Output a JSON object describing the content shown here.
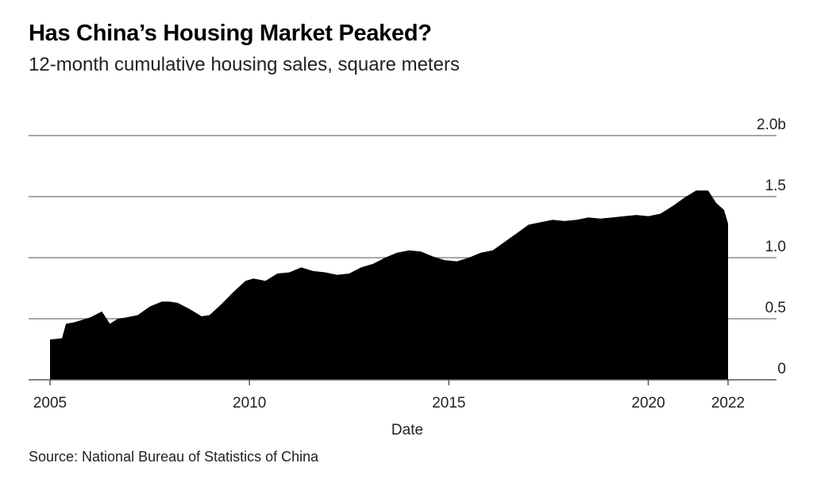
{
  "title": "Has China’s Housing Market Peaked?",
  "subtitle": "12-month cumulative housing sales, square meters",
  "source": "Source: National Bureau of Statistics of China",
  "chart_data": {
    "type": "area",
    "xlabel": "Date",
    "ylabel": "",
    "xlim": [
      2005,
      2022
    ],
    "ylim": [
      0,
      2.0
    ],
    "x_ticks": [
      2005,
      2010,
      2015,
      2020,
      2022
    ],
    "y_ticks": [
      0,
      0.5,
      1.0,
      1.5,
      2.0
    ],
    "y_tick_labels": [
      "0",
      "0.5",
      "1.0",
      "1.5",
      "2.0b"
    ],
    "grid": "horizontal",
    "color": "#000000",
    "series": [
      {
        "x": [
          2005.0,
          2005.3,
          2005.4,
          2005.6,
          2005.8,
          2006.0,
          2006.3,
          2006.5,
          2006.7,
          2006.9,
          2007.2,
          2007.5,
          2007.8,
          2008.0,
          2008.2,
          2008.5,
          2008.8,
          2009.0,
          2009.3,
          2009.6,
          2009.9,
          2010.1,
          2010.4,
          2010.7,
          2011.0,
          2011.3,
          2011.6,
          2011.9,
          2012.2,
          2012.5,
          2012.8,
          2013.1,
          2013.4,
          2013.7,
          2014.0,
          2014.3,
          2014.6,
          2014.9,
          2015.2,
          2015.5,
          2015.8,
          2016.1,
          2016.4,
          2016.7,
          2017.0,
          2017.3,
          2017.6,
          2017.9,
          2018.2,
          2018.5,
          2018.8,
          2019.1,
          2019.4,
          2019.7,
          2020.0,
          2020.3,
          2020.6,
          2020.9,
          2021.2,
          2021.5,
          2021.7,
          2021.9,
          2022.0
        ],
        "values": [
          0.33,
          0.34,
          0.46,
          0.47,
          0.49,
          0.51,
          0.56,
          0.46,
          0.5,
          0.51,
          0.53,
          0.6,
          0.64,
          0.64,
          0.63,
          0.58,
          0.52,
          0.53,
          0.62,
          0.72,
          0.81,
          0.83,
          0.81,
          0.87,
          0.88,
          0.92,
          0.89,
          0.88,
          0.86,
          0.87,
          0.92,
          0.95,
          1.0,
          1.04,
          1.06,
          1.05,
          1.01,
          0.98,
          0.97,
          1.0,
          1.04,
          1.06,
          1.13,
          1.2,
          1.27,
          1.29,
          1.31,
          1.3,
          1.31,
          1.33,
          1.32,
          1.33,
          1.34,
          1.35,
          1.34,
          1.36,
          1.42,
          1.49,
          1.55,
          1.55,
          1.45,
          1.39,
          1.28
        ]
      }
    ]
  }
}
